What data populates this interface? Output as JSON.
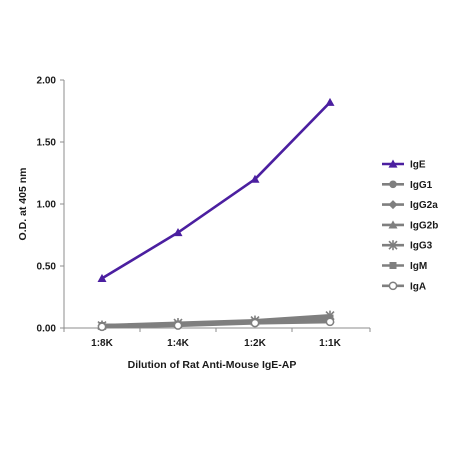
{
  "chart_data": {
    "type": "line",
    "title": "",
    "xlabel": "Dilution of Rat Anti-Mouse IgE-AP",
    "ylabel": "O.D. at 405 nm",
    "categories": [
      "1:8K",
      "1:4K",
      "1:2K",
      "1:1K"
    ],
    "ylim": [
      0,
      2.0
    ],
    "yticks": [
      "0.00",
      "0.50",
      "1.00",
      "1.50",
      "2.00"
    ],
    "grid": false,
    "legend_position": "right",
    "series": [
      {
        "name": "IgE",
        "values": [
          0.4,
          0.77,
          1.2,
          1.82
        ],
        "color": "#4b1fa0",
        "marker": "triangle"
      },
      {
        "name": "IgG1",
        "values": [
          0.02,
          0.03,
          0.05,
          0.06
        ],
        "color": "#7f7f7f",
        "marker": "circle"
      },
      {
        "name": "IgG2a",
        "values": [
          0.02,
          0.03,
          0.05,
          0.07
        ],
        "color": "#7f7f7f",
        "marker": "diamond"
      },
      {
        "name": "IgG2b",
        "values": [
          0.02,
          0.03,
          0.05,
          0.07
        ],
        "color": "#7f7f7f",
        "marker": "triangle"
      },
      {
        "name": "IgG3",
        "values": [
          0.02,
          0.04,
          0.06,
          0.1
        ],
        "color": "#7f7f7f",
        "marker": "star"
      },
      {
        "name": "IgM",
        "values": [
          0.02,
          0.03,
          0.05,
          0.08
        ],
        "color": "#7f7f7f",
        "marker": "square"
      },
      {
        "name": "IgA",
        "values": [
          0.01,
          0.02,
          0.04,
          0.05
        ],
        "color": "#7f7f7f",
        "marker": "open-circle"
      }
    ]
  }
}
